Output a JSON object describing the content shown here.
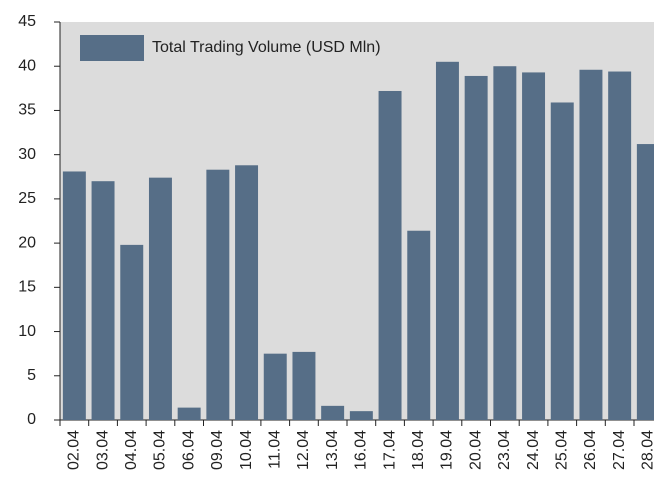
{
  "chart_data": {
    "type": "bar",
    "categories": [
      "02.04",
      "03.04",
      "04.04",
      "05.04",
      "06.04",
      "09.04",
      "10.04",
      "11.04",
      "12.04",
      "13.04",
      "16.04",
      "17.04",
      "18.04",
      "19.04",
      "20.04",
      "23.04",
      "24.04",
      "25.04",
      "26.04",
      "27.04",
      "28.04"
    ],
    "series": [
      {
        "name": "Total Trading Volume (USD Mln)",
        "color": "#566e87",
        "values": [
          28.1,
          27.0,
          19.8,
          27.4,
          1.4,
          28.3,
          28.8,
          7.5,
          7.7,
          1.6,
          1.0,
          37.2,
          21.4,
          40.5,
          38.9,
          40.0,
          39.3,
          35.9,
          39.6,
          39.4,
          31.2
        ]
      }
    ],
    "ylim": [
      0,
      45
    ],
    "yticks": [
      0,
      5,
      10,
      15,
      20,
      25,
      30,
      35,
      40,
      45
    ],
    "legend": "upper left"
  }
}
